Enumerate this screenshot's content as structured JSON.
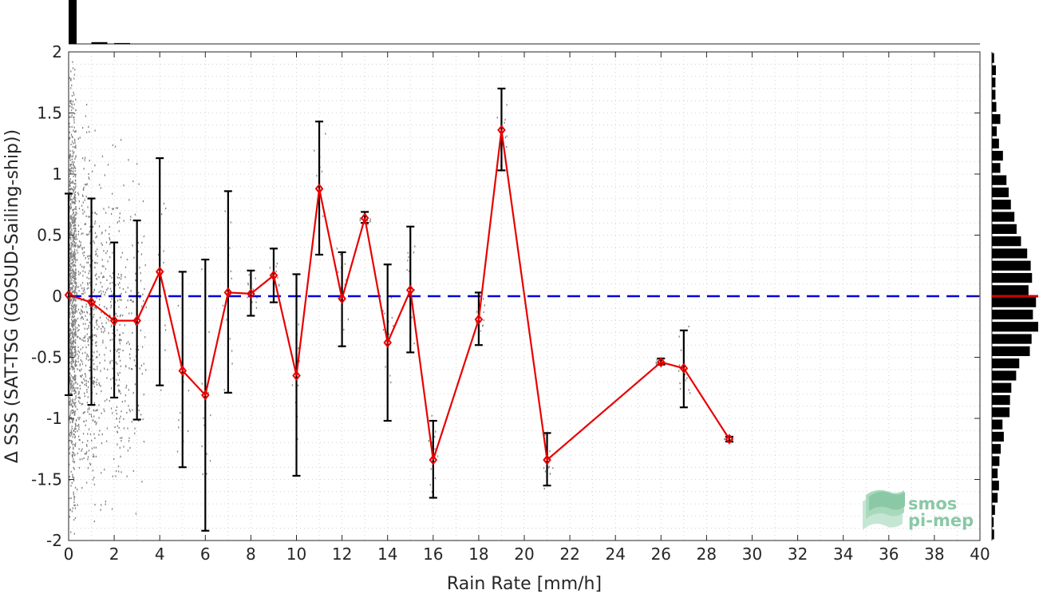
{
  "chart_data": {
    "type": "line",
    "xlabel": "Rain Rate [mm/h]",
    "ylabel": "Δ SSS (SAT-TSG (GOSUD-Sailing-ship))",
    "xlim": [
      0,
      40
    ],
    "ylim": [
      -2,
      2
    ],
    "x_ticks": [
      0,
      2,
      4,
      6,
      8,
      10,
      12,
      14,
      16,
      18,
      20,
      22,
      24,
      26,
      28,
      30,
      32,
      34,
      36,
      38,
      40
    ],
    "y_ticks": [
      2,
      1.5,
      1,
      0.5,
      0,
      -0.5,
      -1,
      -1.5,
      -2
    ],
    "x_tick_labels": [
      "0",
      "2",
      "4",
      "6",
      "8",
      "10",
      "12",
      "14",
      "16",
      "18",
      "20",
      "22",
      "24",
      "26",
      "28",
      "30",
      "32",
      "34",
      "36",
      "38",
      "40"
    ],
    "y_tick_labels": [
      "2",
      "1.5",
      "1",
      "0.5",
      "0",
      "-0.5",
      "-1",
      "-1.5",
      "-2"
    ],
    "grid": true,
    "zero_line": {
      "y": 0,
      "color": "#0000dd",
      "style": "dashed"
    },
    "series": [
      {
        "color": "#e80000",
        "marker": "diamond",
        "x": [
          0,
          1,
          2,
          3,
          4,
          5,
          6,
          7,
          8,
          9,
          10,
          11,
          12,
          13,
          14,
          15,
          16,
          18,
          19,
          21,
          26,
          27,
          29
        ],
        "mean": [
          0.01,
          -0.05,
          -0.2,
          -0.2,
          0.2,
          -0.61,
          -0.81,
          0.03,
          0.02,
          0.17,
          -0.65,
          0.88,
          -0.02,
          0.64,
          -0.38,
          0.05,
          -1.34,
          -0.19,
          1.36,
          -1.34,
          -0.54,
          -0.59,
          -1.17
        ],
        "lower": [
          -0.81,
          -0.89,
          -0.83,
          -1.01,
          -0.73,
          -1.4,
          -1.92,
          -0.79,
          -0.16,
          -0.05,
          -1.47,
          0.34,
          -0.41,
          0.6,
          -1.02,
          -0.46,
          -1.65,
          -0.4,
          1.03,
          -1.55,
          -0.56,
          -0.91,
          -1.19
        ],
        "upper": [
          0.84,
          0.8,
          0.44,
          0.62,
          1.13,
          0.2,
          0.3,
          0.86,
          0.21,
          0.39,
          0.18,
          1.43,
          0.36,
          0.69,
          0.26,
          0.57,
          -1.02,
          0.03,
          1.7,
          -1.12,
          -0.51,
          -0.28,
          -1.15
        ]
      }
    ],
    "scatter_background": {
      "color": "#808080"
    },
    "top_histogram": {
      "color": "#000000",
      "x_bins": [
        0,
        1,
        2
      ],
      "relative_heights": [
        1.0,
        0.04,
        0.02
      ]
    },
    "right_histogram": {
      "color": "#000000",
      "median_line_color": "#cc0000",
      "y_bins": [
        1.95,
        1.85,
        1.75,
        1.65,
        1.55,
        1.45,
        1.35,
        1.25,
        1.15,
        1.05,
        0.95,
        0.85,
        0.75,
        0.65,
        0.55,
        0.45,
        0.35,
        0.25,
        0.15,
        0.05,
        -0.05,
        -0.15,
        -0.25,
        -0.35,
        -0.45,
        -0.55,
        -0.65,
        -0.75,
        -0.85,
        -0.95,
        -1.05,
        -1.15,
        -1.25,
        -1.35,
        -1.45,
        -1.55,
        -1.65,
        -1.75,
        -1.85,
        -1.95
      ],
      "relative_counts": [
        0.05,
        0.09,
        0.08,
        0.08,
        0.1,
        0.19,
        0.11,
        0.16,
        0.25,
        0.19,
        0.33,
        0.38,
        0.43,
        0.51,
        0.56,
        0.66,
        0.8,
        0.88,
        0.91,
        0.83,
        1.0,
        0.93,
        1.05,
        0.9,
        0.86,
        0.62,
        0.55,
        0.44,
        0.41,
        0.4,
        0.24,
        0.27,
        0.2,
        0.17,
        0.13,
        0.16,
        0.13,
        0.07,
        0.04,
        0.05
      ]
    }
  },
  "logo": {
    "line1": "smos",
    "line2": "pi-mep",
    "color": "#8ac8a6"
  }
}
